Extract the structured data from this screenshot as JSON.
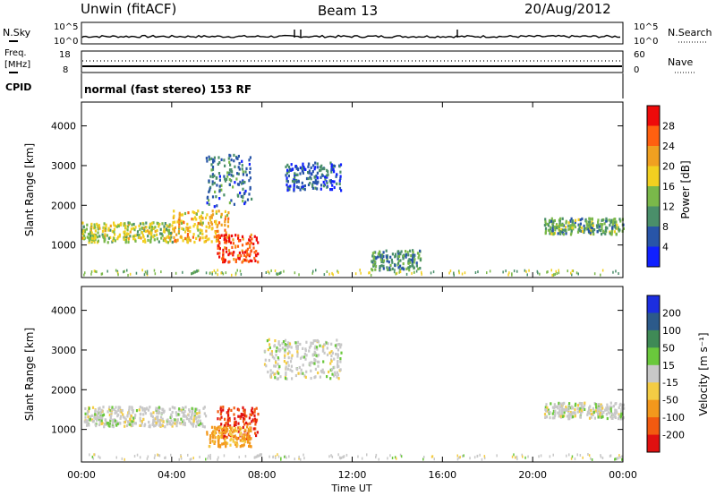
{
  "header": {
    "station": "Unwin (fitACF)",
    "beam": "Beam 13",
    "date": "20/Aug/2012"
  },
  "panels": {
    "nsky": {
      "label": "N.Sky",
      "ticks_left": [
        "10^5",
        "10^0"
      ],
      "ticks_right": [
        "10^5",
        "10^0"
      ],
      "right_label": "N.Search"
    },
    "freq": {
      "label_top": "Freq.",
      "label_unit": "[MHz]",
      "ticks_left": [
        "18",
        "8"
      ],
      "ticks_right": [
        "60",
        "0"
      ],
      "right_label": "Nave"
    },
    "cpid": {
      "label": "CPID",
      "text": "normal (fast stereo) 153 RF"
    }
  },
  "chart_data": [
    {
      "type": "heatmap",
      "quantity": "power",
      "ylabel": "Slant Range [km]",
      "xlabel": "Time UT",
      "x_ticks": [
        "00:00",
        "04:00",
        "08:00",
        "12:00",
        "16:00",
        "20:00",
        "00:00"
      ],
      "y_ticks": [
        1000,
        2000,
        3000,
        4000
      ],
      "ylim": [
        180,
        4600
      ],
      "xlim_hours": [
        0,
        24
      ],
      "colorbar": {
        "label": "Power [dB]",
        "ticks": [
          4,
          8,
          12,
          16,
          20,
          24,
          28
        ],
        "range": [
          0,
          32
        ],
        "colors": [
          "#1020ff",
          "#2855a8",
          "#4a8f6a",
          "#7ab84a",
          "#f2d020",
          "#f0a020",
          "#ff6010",
          "#ee0a0a"
        ]
      },
      "regions": [
        {
          "t": [
            0.0,
            4.0
          ],
          "r": [
            1100,
            1600
          ],
          "level": 16
        },
        {
          "t": [
            4.0,
            6.5
          ],
          "r": [
            1100,
            1900
          ],
          "level": 20
        },
        {
          "t": [
            6.0,
            7.8
          ],
          "r": [
            600,
            1300
          ],
          "level": 28
        },
        {
          "t": [
            5.5,
            7.5
          ],
          "r": [
            2000,
            3300
          ],
          "level": 8
        },
        {
          "t": [
            9.0,
            11.5
          ],
          "r": [
            2400,
            3100
          ],
          "level": 6
        },
        {
          "t": [
            12.8,
            15.0
          ],
          "r": [
            400,
            900
          ],
          "level": 10
        },
        {
          "t": [
            20.5,
            24.0
          ],
          "r": [
            1300,
            1700
          ],
          "level": 12
        }
      ]
    },
    {
      "type": "heatmap",
      "quantity": "velocity",
      "ylabel": "Slant Range [km]",
      "xlabel": "Time UT",
      "x_ticks": [
        "00:00",
        "04:00",
        "08:00",
        "12:00",
        "16:00",
        "20:00",
        "00:00"
      ],
      "y_ticks": [
        1000,
        2000,
        3000,
        4000
      ],
      "ylim": [
        180,
        4600
      ],
      "xlim_hours": [
        0,
        24
      ],
      "colorbar": {
        "label": "Velocity [m s⁻¹]",
        "ticks": [
          200,
          100,
          50,
          15,
          -15,
          -50,
          -100,
          -200
        ],
        "colors": [
          "#1c2ee0",
          "#2c5a8a",
          "#3f8a56",
          "#6ac83c",
          "#c8c8c8",
          "#f4cc44",
          "#f3981c",
          "#f25a10",
          "#e01010"
        ]
      },
      "regions": [
        {
          "t": [
            0.0,
            5.5
          ],
          "r": [
            1100,
            1600
          ],
          "velocity": 0
        },
        {
          "t": [
            6.0,
            7.8
          ],
          "r": [
            800,
            1600
          ],
          "velocity": -200
        },
        {
          "t": [
            5.5,
            7.5
          ],
          "r": [
            600,
            1100
          ],
          "velocity": -60
        },
        {
          "t": [
            8.0,
            11.5
          ],
          "r": [
            2300,
            3300
          ],
          "velocity": 0
        },
        {
          "t": [
            20.5,
            24.0
          ],
          "r": [
            1300,
            1700
          ],
          "velocity": 0
        }
      ]
    }
  ]
}
